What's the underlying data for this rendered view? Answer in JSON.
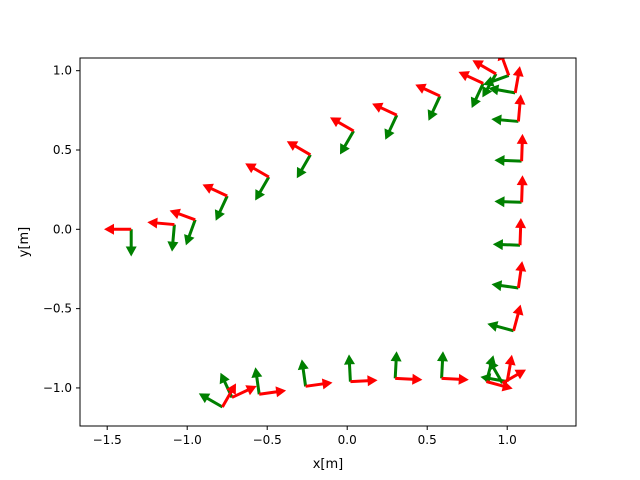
{
  "chart_data": {
    "type": "quiver",
    "title": "",
    "xlabel": "x[m]",
    "ylabel": "y[m]",
    "xlim": [
      -1.67,
      1.43
    ],
    "ylim": [
      -1.24,
      1.08
    ],
    "xticks": [
      -1.5,
      -1.0,
      -0.5,
      0.0,
      0.5,
      1.0
    ],
    "xtick_labels": [
      "−1.5",
      "−1.0",
      "−0.5",
      "0.0",
      "0.5",
      "1.0"
    ],
    "yticks": [
      -1.0,
      -0.5,
      0.0,
      0.5,
      1.0
    ],
    "ytick_labels": [
      "−1.0",
      "−0.5",
      "0.0",
      "0.5",
      "1.0"
    ],
    "grid": false,
    "arrow_length": 0.17,
    "colors": {
      "x_axis_arrow": "#ff0000",
      "y_axis_arrow": "#008000"
    },
    "poses": [
      {
        "x": -1.35,
        "y": 0.0,
        "theta": 180
      },
      {
        "x": -1.08,
        "y": 0.03,
        "theta": 175
      },
      {
        "x": -0.95,
        "y": 0.06,
        "theta": 160
      },
      {
        "x": -0.75,
        "y": 0.21,
        "theta": 155
      },
      {
        "x": -0.49,
        "y": 0.33,
        "theta": 150
      },
      {
        "x": -0.23,
        "y": 0.47,
        "theta": 150
      },
      {
        "x": 0.04,
        "y": 0.62,
        "theta": 150
      },
      {
        "x": 0.31,
        "y": 0.72,
        "theta": 155
      },
      {
        "x": 0.58,
        "y": 0.84,
        "theta": 155
      },
      {
        "x": 0.85,
        "y": 0.92,
        "theta": 155
      },
      {
        "x": 0.93,
        "y": 0.98,
        "theta": 150
      },
      {
        "x": 1.01,
        "y": 0.97,
        "theta": 110
      },
      {
        "x": 1.05,
        "y": 0.86,
        "theta": 80
      },
      {
        "x": 1.07,
        "y": 0.68,
        "theta": 85
      },
      {
        "x": 1.09,
        "y": 0.43,
        "theta": 88
      },
      {
        "x": 1.09,
        "y": 0.17,
        "theta": 88
      },
      {
        "x": 1.08,
        "y": -0.1,
        "theta": 88
      },
      {
        "x": 1.07,
        "y": -0.37,
        "theta": 82
      },
      {
        "x": 1.04,
        "y": -0.64,
        "theta": 75
      },
      {
        "x": 1.0,
        "y": -0.96,
        "theta": 80
      },
      {
        "x": 0.97,
        "y": -0.97,
        "theta": 30
      },
      {
        "x": 0.87,
        "y": -0.96,
        "theta": -15
      },
      {
        "x": 0.59,
        "y": -0.94,
        "theta": -3
      },
      {
        "x": 0.3,
        "y": -0.94,
        "theta": -3
      },
      {
        "x": 0.02,
        "y": -0.96,
        "theta": 3
      },
      {
        "x": -0.26,
        "y": -0.99,
        "theta": 8
      },
      {
        "x": -0.55,
        "y": -1.04,
        "theta": 8
      },
      {
        "x": -0.72,
        "y": -1.06,
        "theta": 25
      },
      {
        "x": -0.78,
        "y": -1.12,
        "theta": 60
      }
    ]
  }
}
